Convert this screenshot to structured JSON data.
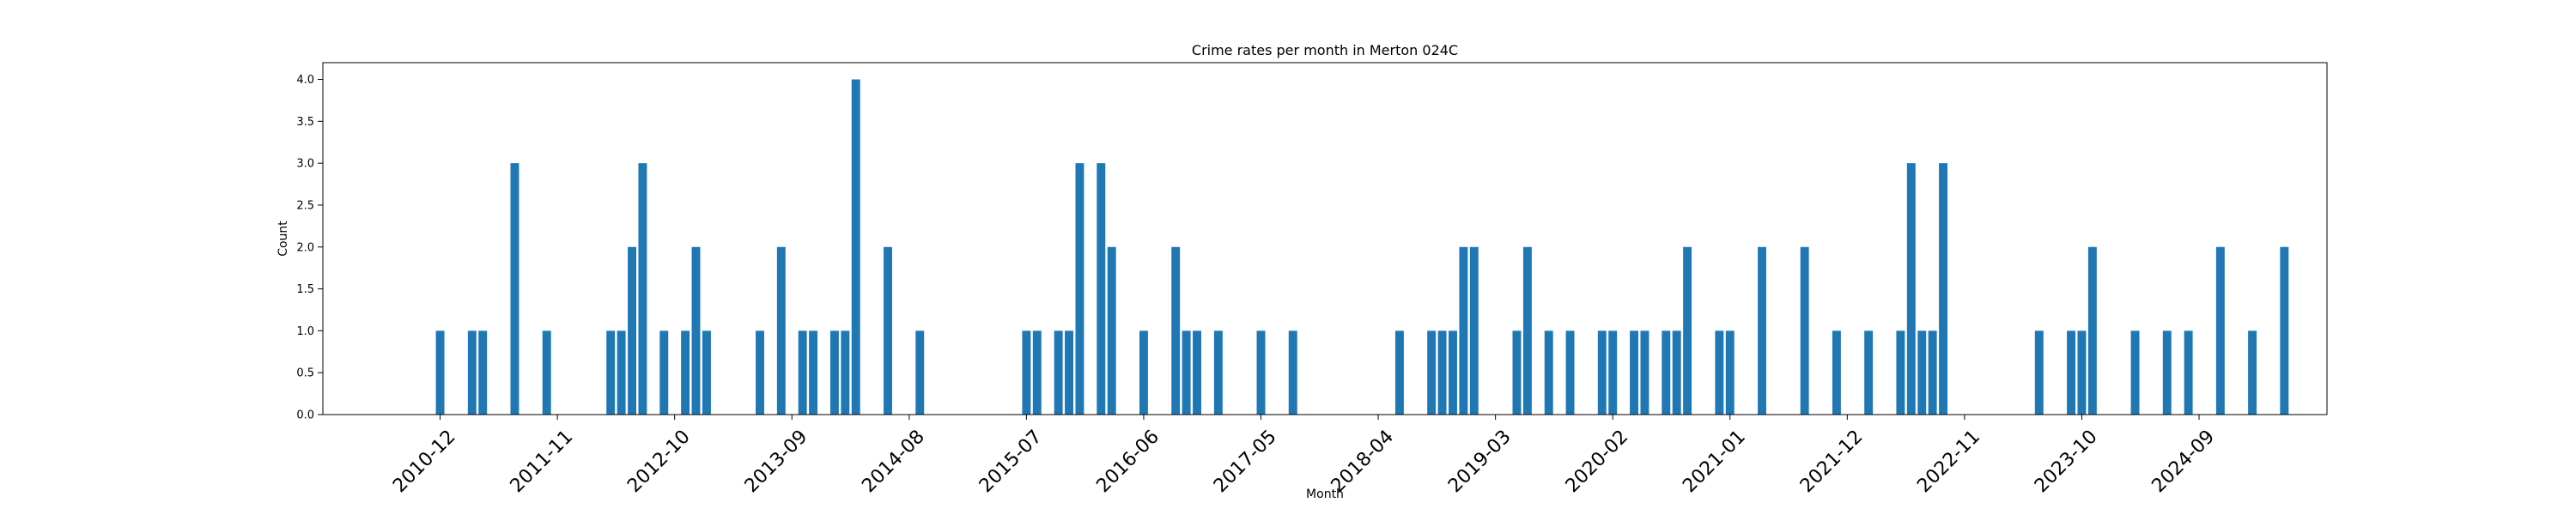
{
  "chart_data": {
    "type": "bar",
    "title": "Crime rates per month in Merton 024C",
    "xlabel": "Month",
    "ylabel": "Count",
    "ylim": [
      0,
      4.2
    ],
    "xlim": [
      "2010-01",
      "2025-09"
    ],
    "grid": false,
    "yticks": [
      "0.0",
      "0.5",
      "1.0",
      "1.5",
      "2.0",
      "2.5",
      "3.0",
      "3.5",
      "4.0"
    ],
    "xticks": [
      "2010-12",
      "2011-11",
      "2012-10",
      "2013-09",
      "2014-08",
      "2015-07",
      "2016-06",
      "2017-05",
      "2018-04",
      "2019-03",
      "2020-02",
      "2021-01",
      "2021-12",
      "2022-11",
      "2023-10",
      "2024-09"
    ],
    "bar_color": "#1f77b4",
    "categories": [
      "2010-12",
      "2011-03",
      "2011-04",
      "2011-07",
      "2011-10",
      "2012-04",
      "2012-05",
      "2012-06",
      "2012-07",
      "2012-09",
      "2012-11",
      "2012-12",
      "2013-01",
      "2013-06",
      "2013-08",
      "2013-10",
      "2013-11",
      "2014-01",
      "2014-02",
      "2014-03",
      "2014-06",
      "2014-09",
      "2015-07",
      "2015-08",
      "2015-10",
      "2015-11",
      "2015-12",
      "2016-02",
      "2016-03",
      "2016-06",
      "2016-09",
      "2016-10",
      "2016-11",
      "2017-01",
      "2017-05",
      "2017-08",
      "2018-06",
      "2018-09",
      "2018-10",
      "2018-11",
      "2018-12",
      "2019-01",
      "2019-05",
      "2019-06",
      "2019-08",
      "2019-10",
      "2020-01",
      "2020-02",
      "2020-04",
      "2020-05",
      "2020-07",
      "2020-08",
      "2020-09",
      "2020-12",
      "2021-01",
      "2021-04",
      "2021-08",
      "2021-11",
      "2022-02",
      "2022-05",
      "2022-06",
      "2022-07",
      "2022-08",
      "2022-09",
      "2023-06",
      "2023-09",
      "2023-10",
      "2023-11",
      "2024-03",
      "2024-06",
      "2024-08",
      "2024-11",
      "2025-02",
      "2025-05"
    ],
    "values": [
      1,
      1,
      1,
      3,
      1,
      1,
      1,
      2,
      3,
      1,
      1,
      2,
      1,
      1,
      2,
      1,
      1,
      1,
      1,
      4,
      2,
      1,
      1,
      1,
      1,
      1,
      3,
      3,
      2,
      1,
      2,
      1,
      1,
      1,
      1,
      1,
      1,
      1,
      1,
      1,
      2,
      2,
      1,
      2,
      1,
      1,
      1,
      1,
      1,
      1,
      1,
      1,
      2,
      1,
      1,
      2,
      2,
      1,
      1,
      1,
      3,
      1,
      1,
      3,
      1,
      1,
      1,
      2,
      1,
      1,
      1,
      2,
      1,
      2
    ]
  }
}
